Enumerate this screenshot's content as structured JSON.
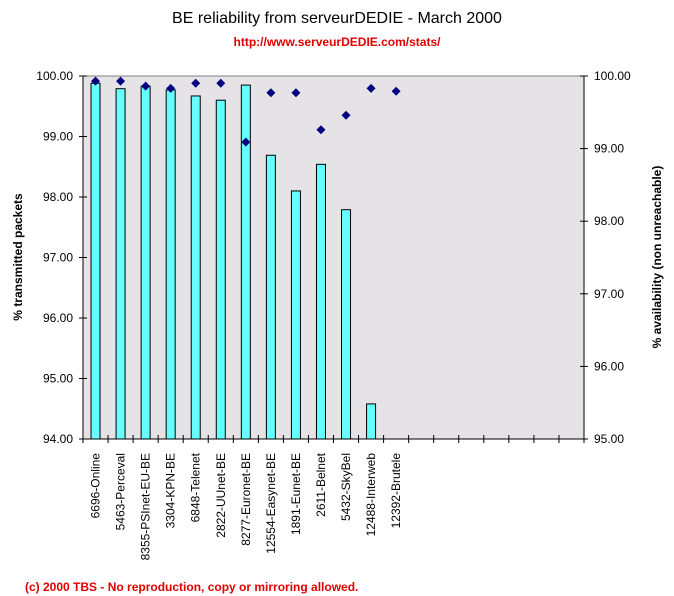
{
  "chart_data": {
    "type": "bar",
    "title": "BE reliability from serveurDEDIE - March 2000",
    "subtitle": "http://www.serveurDEDIE.com/stats/",
    "footer": "(c) 2000 TBS - No reproduction, copy or mirroring allowed.",
    "categories": [
      "6696-Online",
      "5463-Perceval",
      "8355-PSInet-EU-BE",
      "3304-KPN-BE",
      "6848-Telenet",
      "2822-UUnet-BE",
      "8277-Euronet-BE",
      "12554-Easynet-BE",
      "1891-Eunet-BE",
      "2611-Belnet",
      "5432-SkyBel",
      "12488-Interweb",
      "12392-Brutele"
    ],
    "total_slots": 20,
    "ylabel": "% transmitted packets",
    "y2label": "% availability (non unreachable)",
    "ylim": [
      94,
      100
    ],
    "y2lim": [
      95,
      100
    ],
    "yticks": [
      "94.00",
      "95.00",
      "96.00",
      "97.00",
      "98.00",
      "99.00",
      "100.00"
    ],
    "y2ticks": [
      "95.00",
      "96.00",
      "97.00",
      "98.00",
      "99.00",
      "100.00"
    ],
    "grid": false,
    "series": [
      {
        "name": "% transmitted packets",
        "type": "bar",
        "axis": "left",
        "color": "#66ffff",
        "values": [
          99.88,
          99.79,
          99.83,
          99.77,
          99.67,
          99.6,
          99.85,
          98.69,
          98.1,
          98.54,
          97.79,
          94.58,
          null
        ]
      },
      {
        "name": "% availability (non unreachable)",
        "type": "scatter",
        "axis": "right",
        "marker": "diamond",
        "color": "#000080",
        "values": [
          99.93,
          99.93,
          99.86,
          99.83,
          99.9,
          99.9,
          99.09,
          99.77,
          99.77,
          99.26,
          99.46,
          99.83,
          99.79
        ]
      }
    ],
    "colors": {
      "plot_background": "#e6e3e6",
      "bar_fill": "#66ffff",
      "marker": "#000080",
      "title_link": "#e00000"
    }
  }
}
